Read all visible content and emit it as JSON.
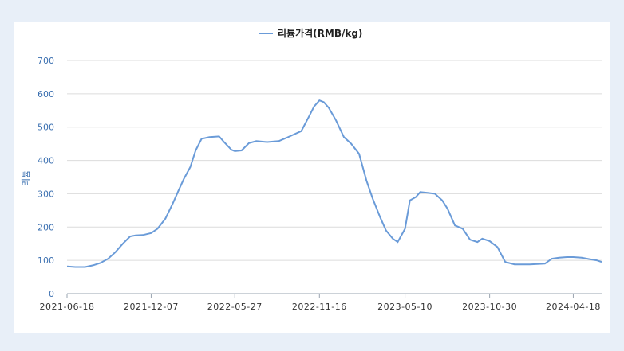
{
  "chart_data": {
    "type": "line",
    "ylabel": "리튬",
    "xlabel": "",
    "ylim": [
      0,
      700
    ],
    "yticks": [
      0,
      100,
      200,
      300,
      400,
      500,
      600,
      700
    ],
    "grid": true,
    "legend_position": "top-center",
    "x_tick_labels": [
      "2021-06-18",
      "2021-12-07",
      "2022-05-27",
      "2022-11-16",
      "2023-05-10",
      "2023-10-30",
      "2024-04-18"
    ],
    "colors": {
      "series": "#6a9bd8"
    },
    "series": [
      {
        "name": "리튬가격(RMB/kg)",
        "points": [
          [
            "2021-06-18",
            82
          ],
          [
            "2021-07-05",
            80
          ],
          [
            "2021-07-25",
            80
          ],
          [
            "2021-08-10",
            85
          ],
          [
            "2021-08-25",
            92
          ],
          [
            "2021-09-10",
            105
          ],
          [
            "2021-09-25",
            125
          ],
          [
            "2021-10-10",
            150
          ],
          [
            "2021-10-25",
            172
          ],
          [
            "2021-11-05",
            175
          ],
          [
            "2021-11-20",
            176
          ],
          [
            "2021-12-07",
            182
          ],
          [
            "2021-12-20",
            195
          ],
          [
            "2022-01-05",
            225
          ],
          [
            "2022-01-20",
            270
          ],
          [
            "2022-02-01",
            310
          ],
          [
            "2022-02-12",
            345
          ],
          [
            "2022-02-25",
            380
          ],
          [
            "2022-03-08",
            430
          ],
          [
            "2022-03-20",
            465
          ],
          [
            "2022-04-05",
            470
          ],
          [
            "2022-04-25",
            472
          ],
          [
            "2022-05-05",
            455
          ],
          [
            "2022-05-20",
            432
          ],
          [
            "2022-05-27",
            428
          ],
          [
            "2022-06-10",
            430
          ],
          [
            "2022-06-25",
            452
          ],
          [
            "2022-07-10",
            458
          ],
          [
            "2022-08-01",
            455
          ],
          [
            "2022-08-25",
            458
          ],
          [
            "2022-09-10",
            468
          ],
          [
            "2022-09-25",
            478
          ],
          [
            "2022-10-10",
            488
          ],
          [
            "2022-10-25",
            530
          ],
          [
            "2022-11-05",
            562
          ],
          [
            "2022-11-16",
            580
          ],
          [
            "2022-11-25",
            575
          ],
          [
            "2022-12-05",
            558
          ],
          [
            "2022-12-20",
            520
          ],
          [
            "2023-01-05",
            470
          ],
          [
            "2023-01-20",
            450
          ],
          [
            "2023-02-05",
            420
          ],
          [
            "2023-02-20",
            340
          ],
          [
            "2023-03-05",
            285
          ],
          [
            "2023-03-20",
            230
          ],
          [
            "2023-04-01",
            190
          ],
          [
            "2023-04-15",
            165
          ],
          [
            "2023-04-25",
            155
          ],
          [
            "2023-05-10",
            195
          ],
          [
            "2023-05-20",
            280
          ],
          [
            "2023-06-01",
            290
          ],
          [
            "2023-06-10",
            305
          ],
          [
            "2023-06-25",
            303
          ],
          [
            "2023-07-10",
            300
          ],
          [
            "2023-07-25",
            280
          ],
          [
            "2023-08-05",
            255
          ],
          [
            "2023-08-20",
            205
          ],
          [
            "2023-09-05",
            195
          ],
          [
            "2023-09-20",
            162
          ],
          [
            "2023-10-05",
            155
          ],
          [
            "2023-10-15",
            165
          ],
          [
            "2023-10-30",
            158
          ],
          [
            "2023-11-15",
            140
          ],
          [
            "2023-12-01",
            95
          ],
          [
            "2023-12-20",
            88
          ],
          [
            "2024-01-20",
            88
          ],
          [
            "2024-02-20",
            90
          ],
          [
            "2024-03-05",
            105
          ],
          [
            "2024-03-20",
            108
          ],
          [
            "2024-04-05",
            110
          ],
          [
            "2024-04-18",
            110
          ],
          [
            "2024-05-05",
            108
          ],
          [
            "2024-05-20",
            104
          ],
          [
            "2024-06-05",
            100
          ],
          [
            "2024-06-15",
            95
          ]
        ]
      }
    ]
  }
}
